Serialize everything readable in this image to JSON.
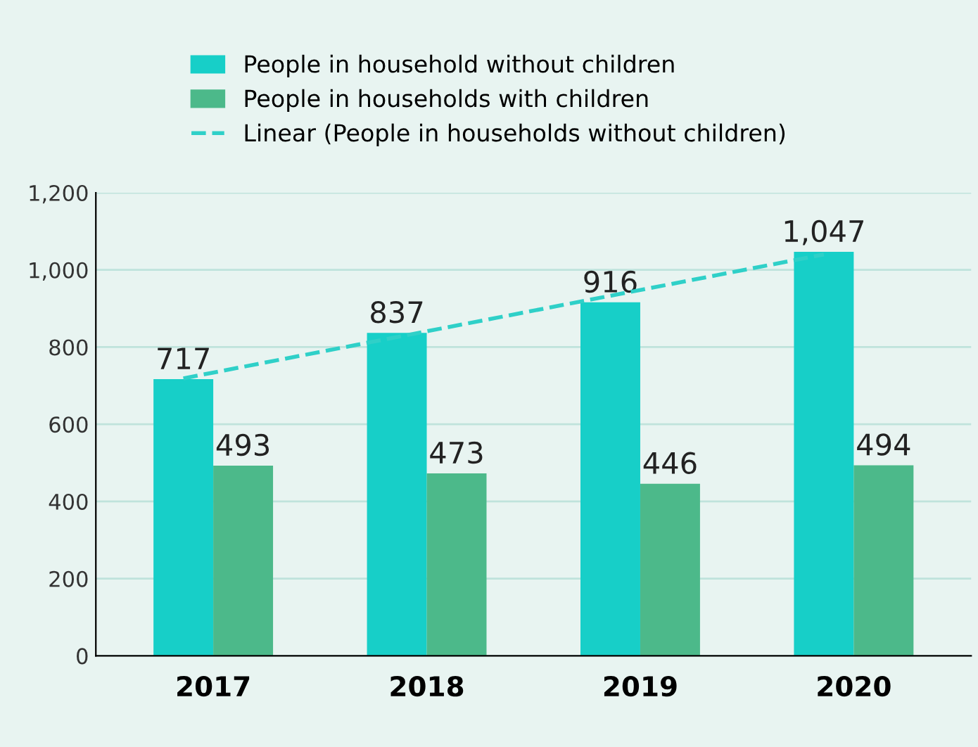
{
  "chart_data": {
    "type": "bar",
    "categories": [
      "2017",
      "2018",
      "2019",
      "2020"
    ],
    "series": [
      {
        "name": "People in household without children",
        "color": "#17cfc8",
        "values": [
          717,
          837,
          916,
          1047
        ],
        "value_labels": [
          "717",
          "837",
          "916",
          "1,047"
        ]
      },
      {
        "name": "People in households with children",
        "color": "#4cb98a",
        "values": [
          493,
          473,
          446,
          494
        ],
        "value_labels": [
          "493",
          "473",
          "446",
          "494"
        ]
      },
      {
        "name": "Linear (People in households without children)",
        "type": "line",
        "color": "#2fd0c8",
        "line_style": "dashed",
        "marker": "none",
        "values": [
          719,
          826,
          933,
          1040
        ]
      }
    ],
    "ylim": [
      0,
      1200
    ],
    "yticks": [
      0,
      {
        "value": 200,
        "label": "200"
      },
      {
        "value": 400,
        "label": "400"
      },
      {
        "value": 600,
        "label": "600"
      },
      {
        "value": 800,
        "label": "800"
      },
      {
        "value": 1000,
        "label": "1,000"
      },
      {
        "value": 1200,
        "label": "1,200"
      }
    ],
    "grid": "y",
    "legend": "top"
  }
}
